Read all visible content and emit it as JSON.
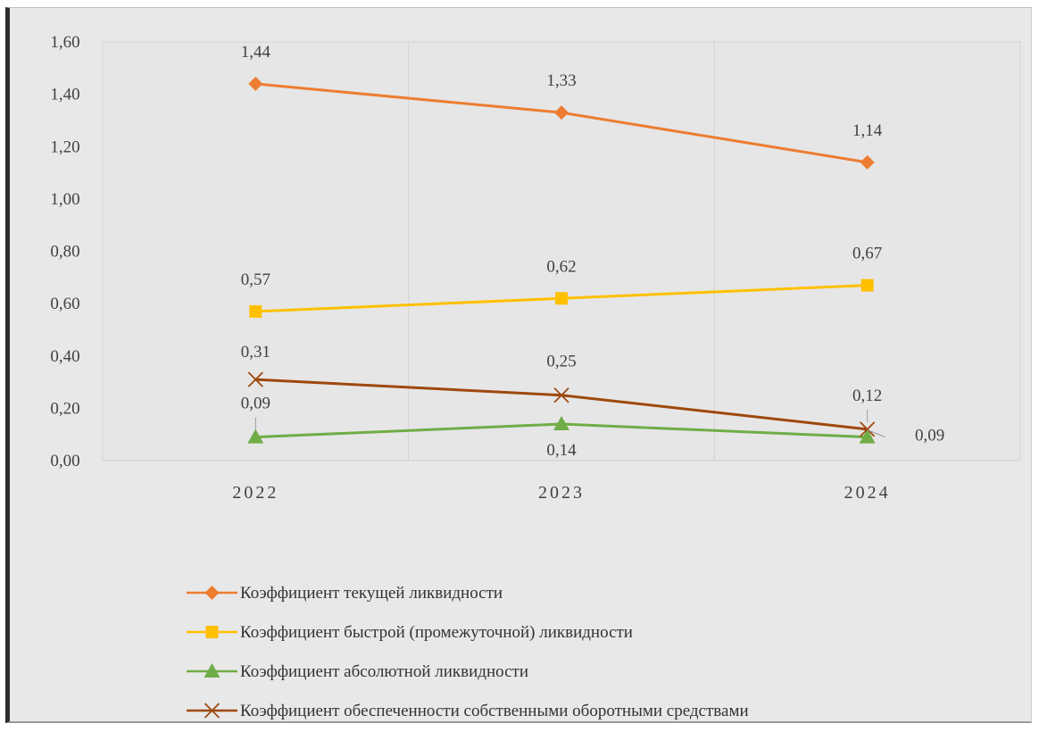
{
  "chart_data": {
    "type": "line",
    "title": "",
    "xlabel": "",
    "ylabel": "",
    "categories": [
      "2022",
      "2023",
      "2024"
    ],
    "ylim": [
      0,
      1.6
    ],
    "ytick_labels": [
      "0,00",
      "0,20",
      "0,40",
      "0,60",
      "0,80",
      "1,00",
      "1,20",
      "1,40",
      "1,60"
    ],
    "grid": "vertical",
    "legend": "bottom",
    "series": [
      {
        "name": "Коэффициент  текущей ликвидности",
        "values": [
          1.44,
          1.33,
          1.14
        ],
        "labels": [
          "1,44",
          "1,33",
          "1,14"
        ],
        "color": "#ed7d31",
        "marker": "diamond"
      },
      {
        "name": "Коэффициент  быстрой (промежуточной) ликвидности",
        "values": [
          0.57,
          0.62,
          0.67
        ],
        "labels": [
          "0,57",
          "0,62",
          "0,67"
        ],
        "color": "#ffc000",
        "marker": "square"
      },
      {
        "name": "Коэффициент  абсолютной  ликвидности",
        "values": [
          0.09,
          0.14,
          0.09
        ],
        "labels": [
          "0,09",
          "0,14",
          "0,09"
        ],
        "color": "#70ad47",
        "marker": "triangle"
      },
      {
        "name": "Коэффициент  обеспеченности  собственными  оборотными средствами",
        "values": [
          0.31,
          0.25,
          0.12
        ],
        "labels": [
          "0,31",
          "0,25",
          "0,12"
        ],
        "color": "#9e480e",
        "marker": "x"
      }
    ]
  }
}
